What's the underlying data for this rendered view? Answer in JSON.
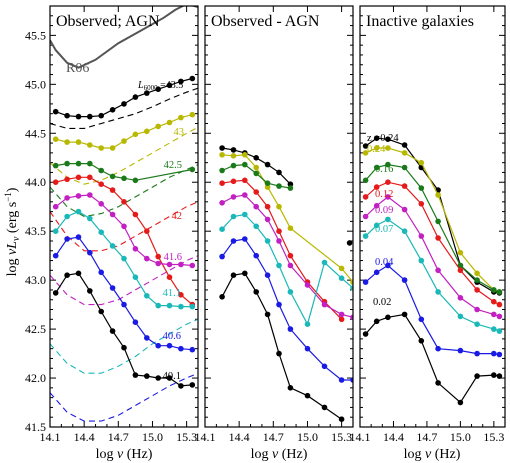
{
  "figure": {
    "ylabel": "log νL_ν (erg s⁻¹)",
    "ylabel_main": "log ",
    "ylabel_nu": "ν",
    "ylabel_L": "L",
    "ylabel_sub": "ν",
    "ylabel_unit": " (erg s",
    "ylabel_sup": "−1",
    "ylabel_close": ")",
    "xlabel": "log ν (Hz)",
    "xlabel_pre": "log ",
    "xlabel_nu": "ν",
    "xlabel_unit": " (Hz)",
    "y_ticks": [
      "41.5",
      "42.0",
      "42.5",
      "43.0",
      "43.5",
      "44.0",
      "44.5",
      "45.0",
      "45.5"
    ],
    "x_ticks": [
      "14.1",
      "14.4",
      "14.7",
      "15.0",
      "15.3"
    ]
  },
  "chart_data": [
    {
      "type": "line",
      "title": "Observed; AGN",
      "xlim": [
        14.1,
        15.4
      ],
      "ylim": [
        41.5,
        45.8
      ],
      "x": [
        14.15,
        14.25,
        14.35,
        14.45,
        14.55,
        14.65,
        14.75,
        14.85,
        14.95,
        15.05,
        15.15,
        15.25,
        15.35
      ],
      "series": [
        {
          "name": "43.5",
          "color": "#000000",
          "values": [
            44.72,
            44.68,
            44.67,
            44.67,
            44.68,
            44.74,
            44.8,
            44.87,
            44.91,
            44.95,
            44.99,
            45.03,
            45.06
          ]
        },
        {
          "name": "43",
          "color": "#b8b800",
          "values": [
            44.44,
            44.41,
            44.41,
            44.38,
            44.35,
            44.35,
            44.42,
            44.49,
            44.52,
            44.57,
            44.61,
            44.66,
            44.69
          ]
        },
        {
          "name": "42.5",
          "color": "#1a7a1a",
          "values": [
            44.17,
            44.19,
            44.19,
            44.19,
            44.12,
            44.06,
            44.04,
            44.02,
            null,
            null,
            null,
            null,
            44.13
          ]
        },
        {
          "name": "42",
          "color": "#e51a1a",
          "values": [
            44.0,
            44.03,
            44.05,
            44.05,
            43.98,
            43.92,
            43.8,
            43.67,
            43.5,
            43.24,
            43.03,
            42.85,
            42.75
          ]
        },
        {
          "name": "41.6",
          "color": "#c220c2",
          "values": [
            43.75,
            43.84,
            43.86,
            43.87,
            43.78,
            43.67,
            43.55,
            43.32,
            43.22,
            43.17,
            43.16,
            43.16,
            43.15
          ]
        },
        {
          "name": "41.1",
          "color": "#1ab8b8",
          "values": [
            43.5,
            43.65,
            43.7,
            43.63,
            43.49,
            43.35,
            43.22,
            43.03,
            42.84,
            42.74,
            42.74,
            42.73,
            42.73
          ]
        },
        {
          "name": "40.6",
          "color": "#1a1ae5",
          "values": [
            43.25,
            43.42,
            43.44,
            43.28,
            43.08,
            42.92,
            42.75,
            42.57,
            42.41,
            42.33,
            42.33,
            42.3,
            42.29
          ]
        },
        {
          "name": "40.1",
          "color": "#000000",
          "values": [
            42.87,
            43.05,
            43.07,
            42.89,
            42.68,
            42.48,
            42.31,
            42.03,
            42.02,
            42.0,
            42.0,
            41.92,
            41.93
          ]
        }
      ],
      "template_curve": {
        "name": "R06",
        "color": "#555555",
        "x": [
          14.1,
          14.15,
          14.25,
          14.35,
          14.5,
          14.7,
          14.9,
          15.1,
          15.2,
          15.3,
          15.4
        ],
        "values": [
          45.45,
          45.35,
          45.22,
          45.17,
          45.25,
          45.42,
          45.55,
          45.68,
          45.76,
          45.82,
          45.79
        ]
      },
      "dashed_models": [
        {
          "color": "#000000",
          "x": [
            14.1,
            14.25,
            14.4,
            14.55,
            14.7,
            14.85,
            15.0,
            15.15,
            15.3,
            15.4
          ],
          "values": [
            44.6,
            44.55,
            44.55,
            44.6,
            44.65,
            44.7,
            44.77,
            44.85,
            44.92,
            44.96
          ]
        },
        {
          "color": "#b8b800",
          "x": [
            14.1,
            14.25,
            14.4,
            14.55,
            14.7,
            14.85,
            15.0,
            15.15,
            15.3,
            15.4
          ],
          "values": [
            44.2,
            44.05,
            43.98,
            44.02,
            44.1,
            44.2,
            44.3,
            44.4,
            44.5,
            44.56
          ]
        },
        {
          "color": "#1a7a1a",
          "x": [
            14.1,
            14.25,
            14.4,
            14.55,
            14.7,
            14.85,
            15.0,
            15.15,
            15.3,
            15.4
          ],
          "values": [
            43.95,
            43.75,
            43.65,
            43.68,
            43.75,
            43.85,
            43.95,
            44.05,
            44.13,
            44.18
          ]
        },
        {
          "color": "#e51a1a",
          "x": [
            14.1,
            14.25,
            14.4,
            14.55,
            14.7,
            14.85,
            15.0,
            15.15,
            15.3,
            15.4
          ],
          "values": [
            43.7,
            43.45,
            43.3,
            43.3,
            43.35,
            43.45,
            43.55,
            43.65,
            43.75,
            43.8
          ]
        },
        {
          "color": "#c220c2",
          "x": [
            14.1,
            14.25,
            14.4,
            14.55,
            14.7,
            14.85,
            15.0,
            15.15,
            15.3,
            15.4
          ],
          "values": [
            43.05,
            42.85,
            42.75,
            42.75,
            42.8,
            42.9,
            43.0,
            43.1,
            43.2,
            43.25
          ]
        },
        {
          "color": "#1ab8b8",
          "x": [
            14.1,
            14.25,
            14.4,
            14.55,
            14.7,
            14.85,
            15.0,
            15.15,
            15.3,
            15.4
          ],
          "values": [
            42.35,
            42.15,
            42.05,
            42.05,
            42.12,
            42.22,
            42.35,
            42.45,
            42.55,
            42.6
          ]
        },
        {
          "color": "#1a1ae5",
          "x": [
            14.1,
            14.25,
            14.4,
            14.55,
            14.7,
            14.85,
            15.0,
            15.15,
            15.3,
            15.4
          ],
          "values": [
            41.85,
            41.65,
            41.56,
            41.56,
            41.62,
            41.72,
            41.82,
            41.92,
            42.0,
            42.05
          ]
        }
      ]
    },
    {
      "type": "line",
      "title": "Observed - AGN",
      "xlim": [
        14.1,
        15.4
      ],
      "ylim": [
        41.5,
        45.8
      ],
      "x": [
        14.25,
        14.35,
        14.45,
        14.55,
        14.65,
        14.75,
        14.85,
        15.0,
        15.15,
        15.3,
        15.4
      ],
      "series": [
        {
          "name": "43.5",
          "color": "#000000",
          "values": [
            44.35,
            44.33,
            44.3,
            44.25,
            44.18,
            44.1,
            43.98,
            null,
            null,
            null,
            null
          ]
        },
        {
          "name": "43",
          "color": "#b8b800",
          "values": [
            44.28,
            44.27,
            44.28,
            44.15,
            43.95,
            43.75,
            43.53,
            null,
            null,
            43.12,
            42.98
          ]
        },
        {
          "name": "42.5",
          "color": "#1a7a1a",
          "values": [
            44.12,
            44.17,
            44.18,
            44.09,
            43.99,
            43.96,
            43.94,
            null,
            null,
            null,
            null
          ]
        },
        {
          "name": "42",
          "color": "#e51a1a",
          "values": [
            43.99,
            44.01,
            44.02,
            43.9,
            43.75,
            43.5,
            43.25,
            42.98,
            42.78,
            42.6,
            null
          ]
        },
        {
          "name": "41.6",
          "color": "#c220c2",
          "values": [
            43.79,
            43.85,
            43.87,
            43.75,
            43.62,
            43.4,
            43.15,
            42.95,
            42.75,
            42.65,
            42.62
          ]
        },
        {
          "name": "41.1",
          "color": "#1ab8b8",
          "values": [
            43.52,
            43.65,
            43.67,
            43.55,
            43.4,
            43.15,
            42.88,
            42.55,
            43.18,
            43.02,
            42.92
          ]
        },
        {
          "name": "40.6",
          "color": "#1a1ae5",
          "values": [
            43.24,
            43.4,
            43.42,
            43.25,
            43.05,
            42.75,
            42.5,
            42.3,
            42.12,
            41.98,
            41.98
          ]
        },
        {
          "name": "40.1",
          "color": "#000000",
          "values": [
            42.83,
            43.05,
            43.07,
            42.88,
            42.65,
            42.25,
            41.9,
            41.82,
            41.7,
            41.58,
            null
          ]
        }
      ],
      "isolated_points": [
        {
          "x": 15.37,
          "y": 43.38,
          "color": "#000000"
        }
      ]
    },
    {
      "type": "line",
      "title": "Inactive galaxies",
      "xlim": [
        14.1,
        15.4
      ],
      "ylim": [
        41.5,
        45.8
      ],
      "x": [
        14.15,
        14.25,
        14.35,
        14.5,
        14.65,
        14.8,
        15.0,
        15.15,
        15.3,
        15.35
      ],
      "series": [
        {
          "name": "z = 0.24",
          "color": "#000000",
          "values": [
            44.37,
            44.45,
            44.44,
            44.38,
            44.15,
            43.92,
            43.15,
            42.98,
            42.88,
            42.87
          ]
        },
        {
          "name": "0.24",
          "color": "#b8b800",
          "values": [
            44.3,
            44.35,
            44.35,
            44.3,
            44.2,
            43.87,
            43.28,
            43.07,
            42.9,
            42.88
          ]
        },
        {
          "name": "0.16",
          "color": "#1a7a1a",
          "values": [
            44.02,
            44.15,
            44.18,
            44.15,
            43.94,
            43.6,
            43.15,
            43.0,
            42.9,
            42.88
          ]
        },
        {
          "name": "0.12",
          "color": "#e51a1a",
          "values": [
            43.85,
            43.95,
            44.0,
            43.96,
            43.78,
            43.43,
            43.1,
            42.9,
            42.78,
            42.75
          ]
        },
        {
          "name": "0.09",
          "color": "#c220c2",
          "values": [
            43.65,
            43.76,
            43.85,
            43.72,
            43.45,
            43.1,
            42.82,
            42.7,
            42.65,
            42.63
          ]
        },
        {
          "name": "0.07",
          "color": "#1ab8b8",
          "values": [
            43.45,
            43.56,
            43.62,
            43.5,
            43.2,
            42.88,
            42.63,
            42.55,
            42.5,
            42.48
          ]
        },
        {
          "name": "0.04",
          "color": "#1a1ae5",
          "values": [
            42.98,
            43.08,
            43.15,
            43.0,
            42.6,
            42.3,
            42.28,
            42.25,
            42.25,
            42.24
          ]
        },
        {
          "name": "0.02",
          "color": "#000000",
          "values": [
            42.45,
            42.58,
            42.62,
            42.65,
            42.38,
            41.95,
            41.75,
            42.02,
            42.03,
            42.02
          ]
        }
      ]
    }
  ],
  "annotations": {
    "panel1": [
      {
        "text": "R06",
        "color": "#555555"
      },
      {
        "text": "43",
        "color": "#b8b800"
      },
      {
        "text": "42.5",
        "color": "#1a7a1a"
      },
      {
        "text": "42",
        "color": "#e51a1a"
      },
      {
        "text": "41.6",
        "color": "#c220c2"
      },
      {
        "text": "41.1",
        "color": "#1ab8b8"
      },
      {
        "text": "40.6",
        "color": "#1a1ae5"
      },
      {
        "text": "40.1",
        "color": "#000000"
      }
    ],
    "l_label_main": "L",
    "l_label_sub": "6000",
    "l_label_rest": " =43.5",
    "panel3": [
      {
        "text": "z =0.24",
        "color": "#000000"
      },
      {
        "text": "0.24",
        "color": "#b8b800"
      },
      {
        "text": "0.16",
        "color": "#1a7a1a"
      },
      {
        "text": "0.12",
        "color": "#e51a1a"
      },
      {
        "text": "0.09",
        "color": "#c220c2"
      },
      {
        "text": "0.07",
        "color": "#1ab8b8"
      },
      {
        "text": "0.04",
        "color": "#1a1ae5"
      },
      {
        "text": "0.02",
        "color": "#000000"
      }
    ]
  }
}
